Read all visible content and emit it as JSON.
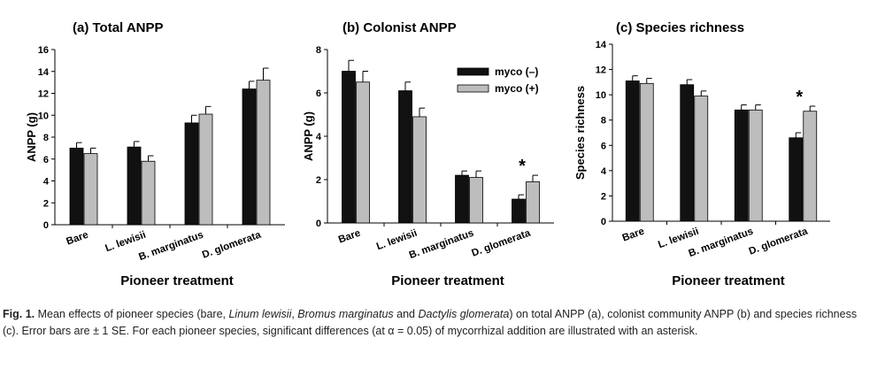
{
  "figure": {
    "caption_label": "Fig. 1.",
    "caption_parts": [
      {
        "t": "Mean effects of pioneer species (bare, ",
        "i": false
      },
      {
        "t": "Linum lewisii",
        "i": true
      },
      {
        "t": ", ",
        "i": false
      },
      {
        "t": "Bromus marginatus",
        "i": true
      },
      {
        "t": " and ",
        "i": false
      },
      {
        "t": "Dactylis glomerata",
        "i": true
      },
      {
        "t": ") on total ANPP (a), colonist community ANPP (b) and species richness (c). Error bars are ± 1 SE. For each pioneer species, significant differences (at α = 0.05) of mycorrhizal addition are illustrated with an asterisk.",
        "i": false
      }
    ]
  },
  "legend": {
    "items": [
      {
        "label": "myco (–)",
        "color": "#111111"
      },
      {
        "label": "myco (+)",
        "color": "#bdbdbd"
      }
    ],
    "placement": "top-right of panel (b)"
  },
  "colors": {
    "myco_minus": "#111111",
    "myco_plus": "#bdbdbd"
  },
  "chart_data": [
    {
      "type": "bar",
      "title": "(a)  Total ANPP",
      "xlabel": "Pioneer treatment",
      "ylabel": "ANPP  (g)",
      "categories": [
        "Bare",
        "L. lewisii",
        "B. marginatus",
        "D. glomerata"
      ],
      "ylim": [
        0,
        16
      ],
      "yticks": [
        0,
        2,
        4,
        6,
        8,
        10,
        12,
        14,
        16
      ],
      "series": [
        {
          "name": "myco (–)",
          "values": [
            7.0,
            7.1,
            9.3,
            12.4
          ],
          "errors": [
            0.5,
            0.5,
            0.7,
            0.7
          ]
        },
        {
          "name": "myco (+)",
          "values": [
            6.5,
            5.8,
            10.1,
            13.2
          ],
          "errors": [
            0.5,
            0.5,
            0.7,
            1.1
          ]
        }
      ],
      "significant": [
        false,
        false,
        false,
        false
      ],
      "grid": false
    },
    {
      "type": "bar",
      "title": "(b) Colonist ANPP",
      "xlabel": "Pioneer treatment",
      "ylabel": "ANPP  (g)",
      "categories": [
        "Bare",
        "L. lewisii",
        "B. marginatus",
        "D. glomerata"
      ],
      "ylim": [
        0,
        8
      ],
      "yticks": [
        0,
        2,
        4,
        6,
        8
      ],
      "series": [
        {
          "name": "myco (–)",
          "values": [
            7.0,
            6.1,
            2.2,
            1.1
          ],
          "errors": [
            0.5,
            0.4,
            0.2,
            0.2
          ]
        },
        {
          "name": "myco (+)",
          "values": [
            6.5,
            4.9,
            2.1,
            1.9
          ],
          "errors": [
            0.5,
            0.4,
            0.3,
            0.3
          ]
        }
      ],
      "significant": [
        false,
        false,
        false,
        true
      ],
      "grid": false
    },
    {
      "type": "bar",
      "title": "(c) Species richness",
      "xlabel": "Pioneer treatment",
      "ylabel": "Species richness",
      "categories": [
        "Bare",
        "L. lewisii",
        "B. marginatus",
        "D. glomerata"
      ],
      "ylim": [
        0,
        14
      ],
      "yticks": [
        0,
        2,
        4,
        6,
        8,
        10,
        12,
        14
      ],
      "series": [
        {
          "name": "myco (–)",
          "values": [
            11.1,
            10.8,
            8.8,
            6.6
          ],
          "errors": [
            0.4,
            0.4,
            0.4,
            0.4
          ]
        },
        {
          "name": "myco (+)",
          "values": [
            10.9,
            9.9,
            8.8,
            8.7
          ],
          "errors": [
            0.4,
            0.4,
            0.4,
            0.4
          ]
        }
      ],
      "significant": [
        false,
        false,
        false,
        true
      ],
      "grid": false
    }
  ],
  "significance_marker": "*"
}
